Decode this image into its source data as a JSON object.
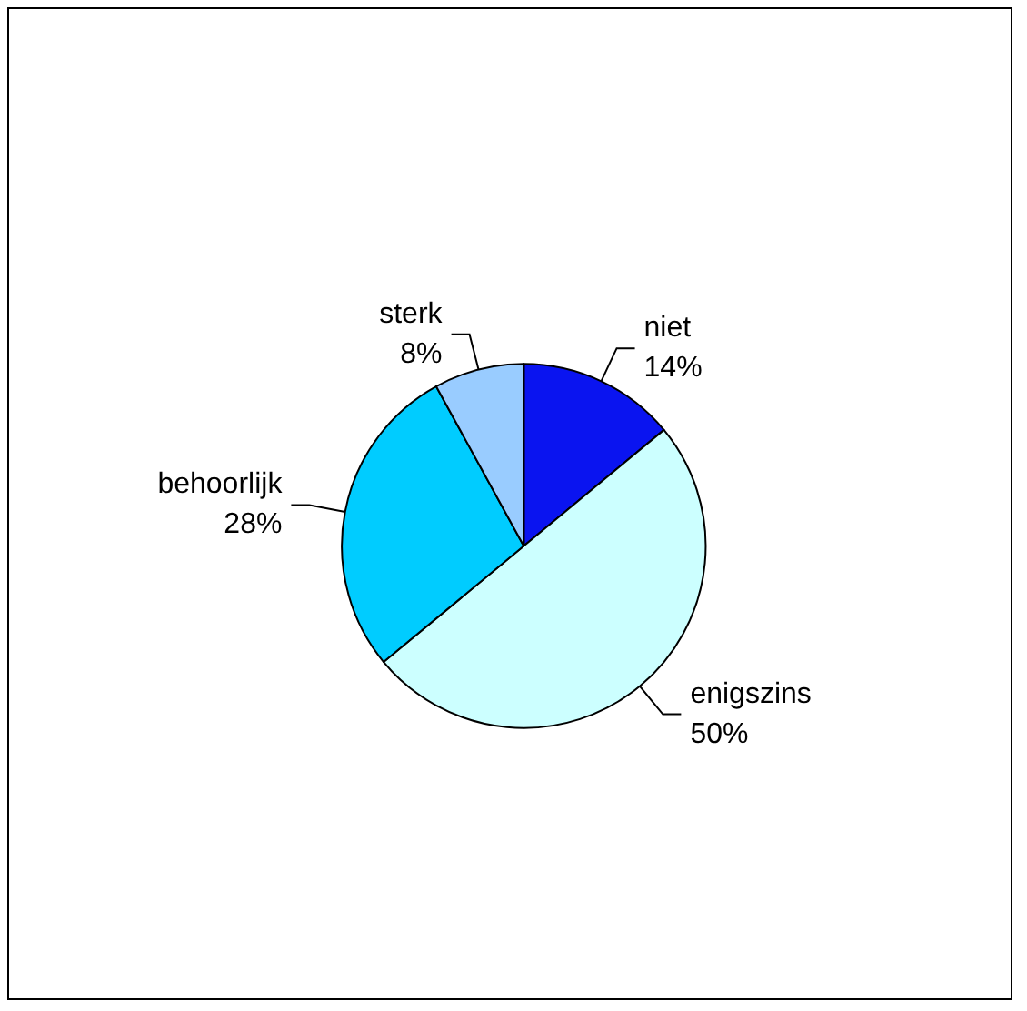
{
  "chart_data": {
    "type": "pie",
    "categories": [
      "niet",
      "enigszins",
      "behoorlijk",
      "sterk"
    ],
    "values": [
      14,
      50,
      28,
      8
    ],
    "colors": [
      "#0a14f0",
      "#ccffff",
      "#00ccff",
      "#99ccff"
    ],
    "value_labels": [
      "14%",
      "50%",
      "28%",
      "8%"
    ],
    "legend": false
  }
}
